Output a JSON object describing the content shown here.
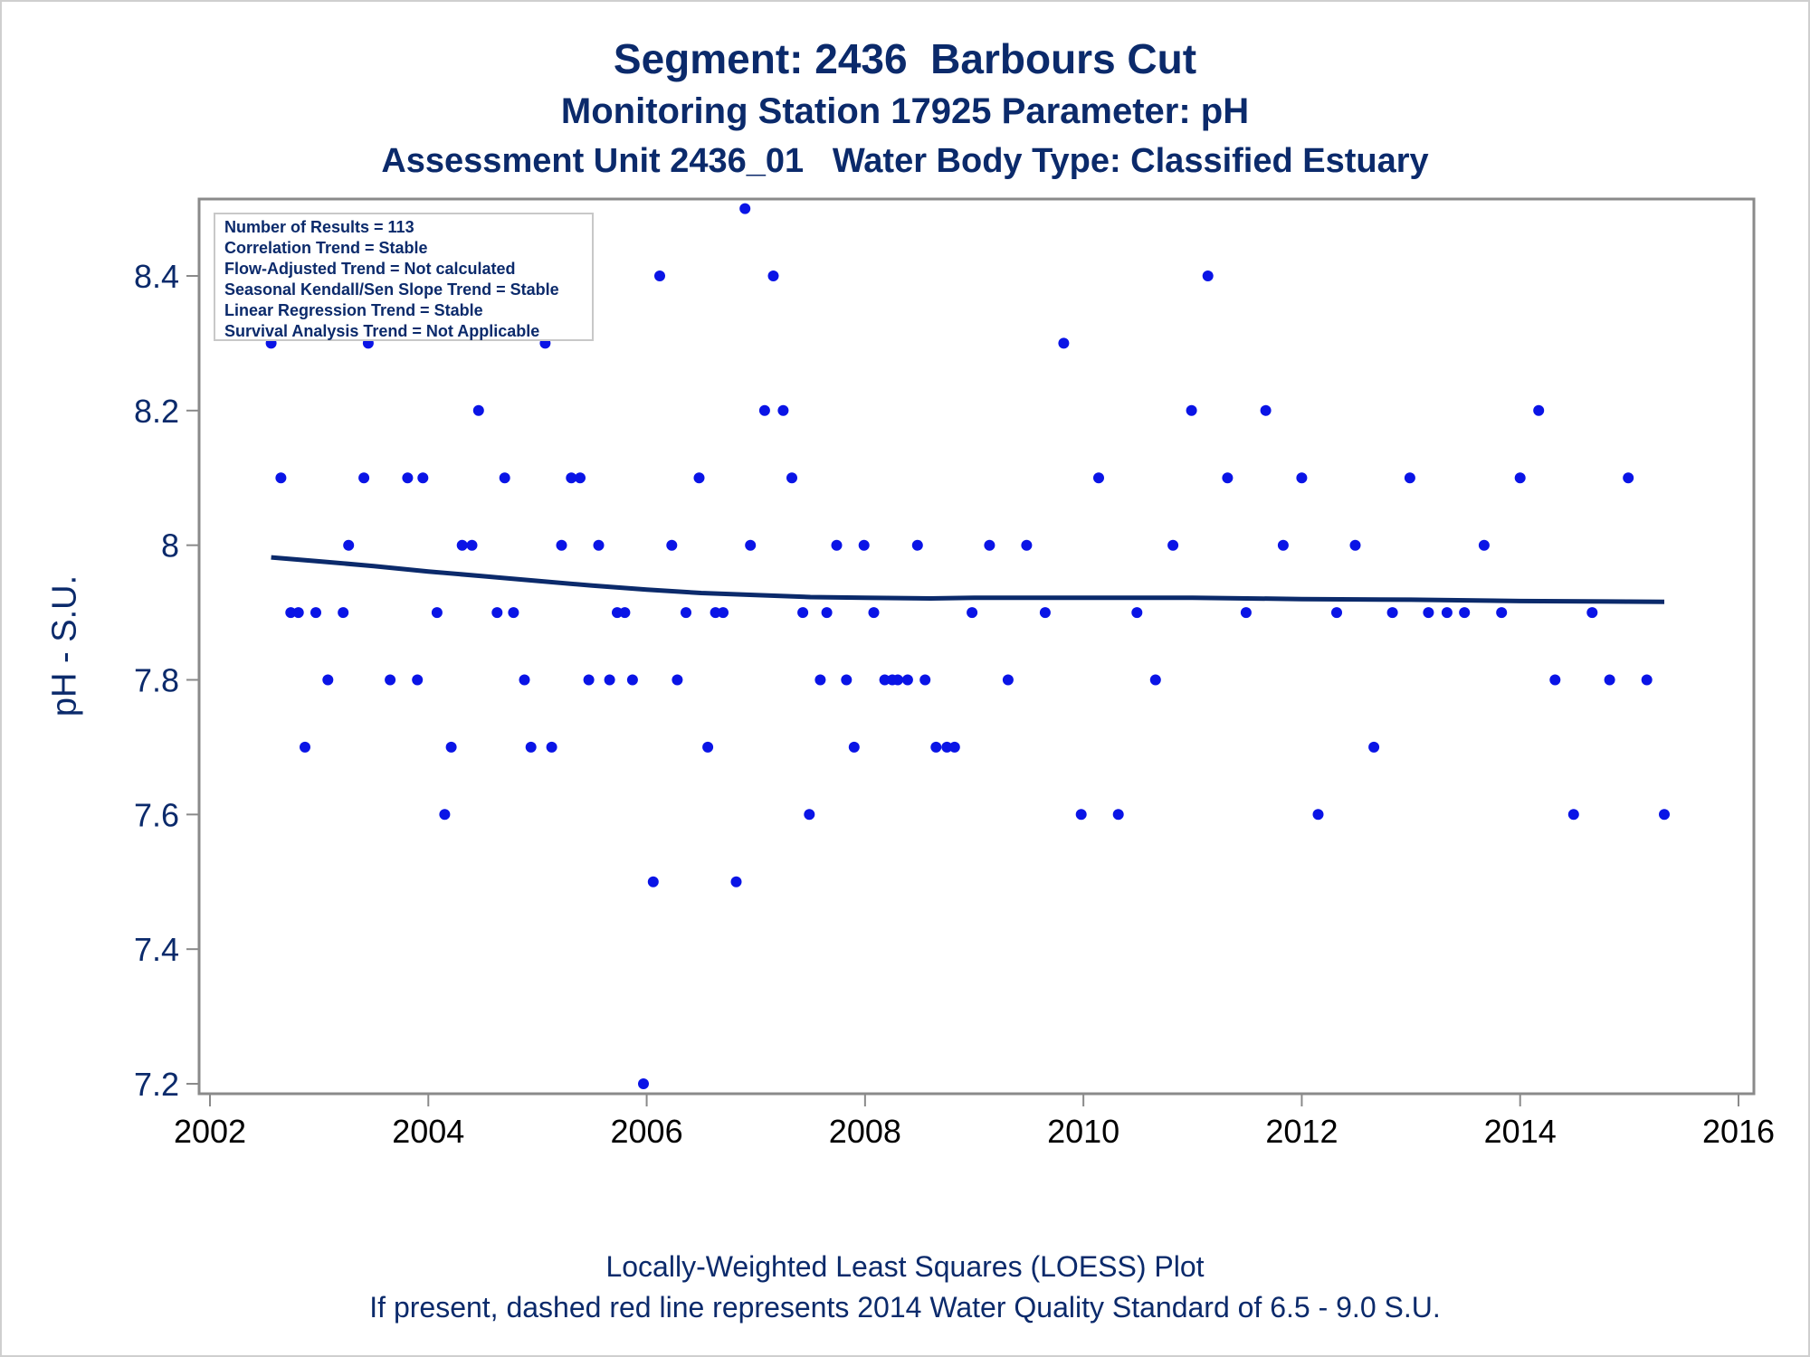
{
  "titles": {
    "line1": "Segment: 2436  Barbours Cut",
    "line2": "Monitoring Station 17925 Parameter: pH",
    "line3": "Assessment Unit 2436_01   Water Body Type: Classified Estuary"
  },
  "footnotes": {
    "line1": "Locally-Weighted Least Squares (LOESS) Plot",
    "line2": "If present, dashed red line represents 2014 Water Quality Standard of 6.5 - 9.0 S.U."
  },
  "stats_box": [
    "Number of Results = 113",
    "Correlation Trend = Stable",
    "Flow-Adjusted Trend = Not calculated",
    "Seasonal Kendall/Sen Slope Trend = Stable",
    "Linear Regression Trend = Stable",
    "Survival Analysis Trend = Not Applicable"
  ],
  "colors": {
    "text": "#0b2a6b",
    "points": "#0a14e6",
    "loess": "#0b2a6b",
    "axis": "#8a8a8a"
  },
  "chart_data": {
    "type": "scatter",
    "ylabel": "pH - S.U.",
    "xlim": [
      2002,
      2016
    ],
    "ylim": [
      7.19,
      8.52
    ],
    "x_ticks": [
      "2002",
      "2004",
      "2006",
      "2008",
      "2010",
      "2012",
      "2014",
      "2016"
    ],
    "y_ticks": [
      "7.2",
      "7.4",
      "7.6",
      "7.8",
      "8",
      "8.2",
      "8.4"
    ],
    "y_tick_values": [
      7.2,
      7.4,
      7.6,
      7.8,
      8.0,
      8.2,
      8.4
    ],
    "grid": false,
    "points": [
      [
        2002.56,
        8.3
      ],
      [
        2002.65,
        8.1
      ],
      [
        2002.74,
        7.9
      ],
      [
        2002.81,
        7.9
      ],
      [
        2002.87,
        7.7
      ],
      [
        2002.97,
        7.9
      ],
      [
        2003.08,
        7.8
      ],
      [
        2003.14,
        8.4
      ],
      [
        2003.22,
        7.9
      ],
      [
        2003.27,
        8.0
      ],
      [
        2003.41,
        8.1
      ],
      [
        2003.45,
        8.3
      ],
      [
        2003.65,
        7.8
      ],
      [
        2003.81,
        8.1
      ],
      [
        2003.9,
        7.8
      ],
      [
        2003.95,
        8.1
      ],
      [
        2004.08,
        7.9
      ],
      [
        2004.15,
        7.6
      ],
      [
        2004.21,
        7.7
      ],
      [
        2004.31,
        8.0
      ],
      [
        2004.4,
        8.0
      ],
      [
        2004.46,
        8.2
      ],
      [
        2004.56,
        8.4
      ],
      [
        2004.63,
        7.9
      ],
      [
        2004.7,
        8.1
      ],
      [
        2004.78,
        7.9
      ],
      [
        2004.88,
        7.8
      ],
      [
        2004.94,
        7.7
      ],
      [
        2005.07,
        8.3
      ],
      [
        2005.13,
        7.7
      ],
      [
        2005.22,
        8.0
      ],
      [
        2005.31,
        8.1
      ],
      [
        2005.39,
        8.1
      ],
      [
        2005.47,
        7.8
      ],
      [
        2005.56,
        8.0
      ],
      [
        2005.66,
        7.8
      ],
      [
        2005.73,
        7.9
      ],
      [
        2005.8,
        7.9
      ],
      [
        2005.87,
        7.8
      ],
      [
        2005.97,
        7.2
      ],
      [
        2006.06,
        7.5
      ],
      [
        2006.12,
        8.4
      ],
      [
        2006.23,
        8.0
      ],
      [
        2006.28,
        7.8
      ],
      [
        2006.36,
        7.9
      ],
      [
        2006.48,
        8.1
      ],
      [
        2006.56,
        7.7
      ],
      [
        2006.63,
        7.9
      ],
      [
        2006.7,
        7.9
      ],
      [
        2006.82,
        7.5
      ],
      [
        2006.9,
        8.5
      ],
      [
        2006.95,
        8.0
      ],
      [
        2007.08,
        8.2
      ],
      [
        2007.16,
        8.4
      ],
      [
        2007.25,
        8.2
      ],
      [
        2007.33,
        8.1
      ],
      [
        2007.43,
        7.9
      ],
      [
        2007.49,
        7.6
      ],
      [
        2007.59,
        7.8
      ],
      [
        2007.65,
        7.9
      ],
      [
        2007.74,
        8.0
      ],
      [
        2007.83,
        7.8
      ],
      [
        2007.9,
        7.7
      ],
      [
        2007.99,
        8.0
      ],
      [
        2008.08,
        7.9
      ],
      [
        2008.18,
        7.8
      ],
      [
        2008.25,
        7.8
      ],
      [
        2008.3,
        7.8
      ],
      [
        2008.39,
        7.8
      ],
      [
        2008.48,
        8.0
      ],
      [
        2008.55,
        7.8
      ],
      [
        2008.65,
        7.7
      ],
      [
        2008.75,
        7.7
      ],
      [
        2008.82,
        7.7
      ],
      [
        2008.98,
        7.9
      ],
      [
        2009.14,
        8.0
      ],
      [
        2009.31,
        7.8
      ],
      [
        2009.48,
        8.0
      ],
      [
        2009.65,
        7.9
      ],
      [
        2009.82,
        8.3
      ],
      [
        2009.98,
        7.6
      ],
      [
        2010.14,
        8.1
      ],
      [
        2010.32,
        7.6
      ],
      [
        2010.49,
        7.9
      ],
      [
        2010.66,
        7.8
      ],
      [
        2010.82,
        8.0
      ],
      [
        2010.99,
        8.2
      ],
      [
        2011.14,
        8.4
      ],
      [
        2011.32,
        8.1
      ],
      [
        2011.49,
        7.9
      ],
      [
        2011.67,
        8.2
      ],
      [
        2011.83,
        8.0
      ],
      [
        2012.0,
        8.1
      ],
      [
        2012.15,
        7.6
      ],
      [
        2012.32,
        7.9
      ],
      [
        2012.49,
        8.0
      ],
      [
        2012.66,
        7.7
      ],
      [
        2012.83,
        7.9
      ],
      [
        2012.99,
        8.1
      ],
      [
        2013.16,
        7.9
      ],
      [
        2013.33,
        7.9
      ],
      [
        2013.49,
        7.9
      ],
      [
        2013.67,
        8.0
      ],
      [
        2013.83,
        7.9
      ],
      [
        2014.0,
        8.1
      ],
      [
        2014.17,
        8.2
      ],
      [
        2014.32,
        7.8
      ],
      [
        2014.49,
        7.6
      ],
      [
        2014.66,
        7.9
      ],
      [
        2014.82,
        7.8
      ],
      [
        2014.99,
        8.1
      ],
      [
        2015.16,
        7.8
      ],
      [
        2015.32,
        7.6
      ]
    ],
    "loess": [
      [
        2002.56,
        7.982
      ],
      [
        2003.0,
        7.976
      ],
      [
        2003.5,
        7.969
      ],
      [
        2004.0,
        7.961
      ],
      [
        2004.5,
        7.954
      ],
      [
        2005.0,
        7.947
      ],
      [
        2005.5,
        7.94
      ],
      [
        2006.0,
        7.934
      ],
      [
        2006.5,
        7.929
      ],
      [
        2007.0,
        7.926
      ],
      [
        2007.5,
        7.923
      ],
      [
        2008.0,
        7.922
      ],
      [
        2008.6,
        7.921
      ],
      [
        2009.0,
        7.922
      ],
      [
        2010.0,
        7.922
      ],
      [
        2011.0,
        7.922
      ],
      [
        2012.0,
        7.92
      ],
      [
        2013.0,
        7.919
      ],
      [
        2014.0,
        7.917
      ],
      [
        2015.32,
        7.916
      ]
    ]
  }
}
